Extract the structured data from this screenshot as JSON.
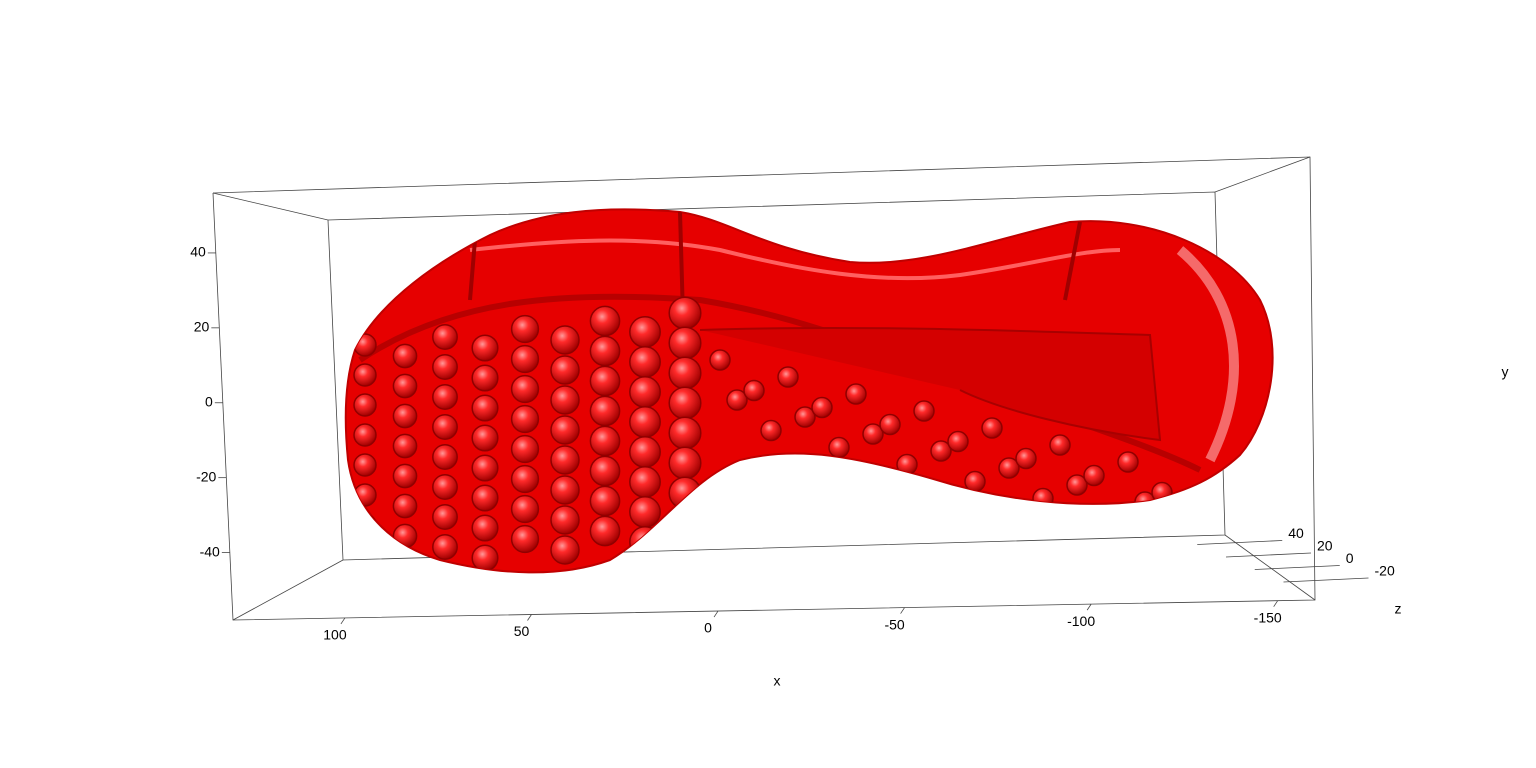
{
  "chart_data": {
    "type": "mesh3d",
    "color": "#e60000",
    "x_label": "x",
    "y_label": "y",
    "z_label": "z",
    "xlim": [
      130,
      -160
    ],
    "xticks": [
      100,
      50,
      0,
      -50,
      -100,
      -150
    ],
    "ylim": [
      -58,
      56
    ],
    "yticks": [
      40,
      20,
      0,
      -20,
      -40
    ],
    "zlim": [
      -28,
      52
    ],
    "zticks": [
      40,
      20,
      0,
      -20
    ]
  }
}
